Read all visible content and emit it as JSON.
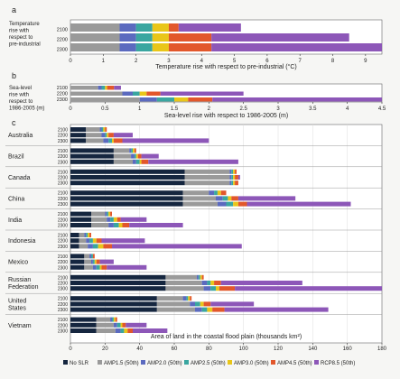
{
  "legend_labels": [
    "No SLR",
    "AMP1.5 (50th)",
    "AMP2.0 (50th)",
    "AMP2.5 (50th)",
    "AMP3.0 (50th)",
    "AMP4.5 (50th)",
    "RCP8.5 (50th)"
  ],
  "series_colors": [
    "#15263f",
    "#9a9a9a",
    "#5b6abf",
    "#3aa6a0",
    "#e9c619",
    "#e2572b",
    "#8d57b8"
  ],
  "chart_data": [
    {
      "panel": "a",
      "type": "bar",
      "orientation": "horizontal",
      "stacked": true,
      "row_label": "Temperature rise with respect to pre-industrial",
      "xlabel": "Temperature rise with respect to pre-industrial (°C)",
      "xlim": [
        0,
        9.5
      ],
      "xticks": [
        0,
        1,
        2,
        3,
        4,
        5,
        6,
        7,
        8,
        9
      ],
      "categories": [
        "2100",
        "2200",
        "2300"
      ],
      "series": [
        {
          "name": "AMP1.5 (50th)",
          "values": [
            1.5,
            1.5,
            1.5
          ]
        },
        {
          "name": "AMP2.0 (50th)",
          "values": [
            0.5,
            0.5,
            0.5
          ]
        },
        {
          "name": "AMP2.5 (50th)",
          "values": [
            0.5,
            0.5,
            0.5
          ]
        },
        {
          "name": "AMP3.0 (50th)",
          "values": [
            0.5,
            0.5,
            0.5
          ]
        },
        {
          "name": "AMP4.5 (50th)",
          "values": [
            0.3,
            1.3,
            1.3
          ]
        },
        {
          "name": "RCP8.5 (50th)",
          "values": [
            1.9,
            4.2,
            5.2
          ]
        }
      ]
    },
    {
      "panel": "b",
      "type": "bar",
      "orientation": "horizontal",
      "stacked": true,
      "row_label": "Sea-level rise with respect to 1986-2005 (m)",
      "xlabel": "Sea-level rise with respect to 1986-2005 (m)",
      "xlim": [
        0,
        4.5
      ],
      "xticks": [
        0,
        0.5,
        1,
        1.5,
        2,
        2.5,
        3,
        3.5,
        4,
        4.5
      ],
      "categories": [
        "2100",
        "2200",
        "2300"
      ],
      "series": [
        {
          "name": "AMP1.5 (50th)",
          "values": [
            0.4,
            0.75,
            1.0
          ]
        },
        {
          "name": "AMP2.0 (50th)",
          "values": [
            0.05,
            0.15,
            0.25
          ]
        },
        {
          "name": "AMP2.5 (50th)",
          "values": [
            0.05,
            0.1,
            0.25
          ]
        },
        {
          "name": "AMP3.0 (50th)",
          "values": [
            0.03,
            0.1,
            0.2
          ]
        },
        {
          "name": "AMP4.5 (50th)",
          "values": [
            0.1,
            0.2,
            0.35
          ]
        },
        {
          "name": "RCP8.5 (50th)",
          "values": [
            0.1,
            1.2,
            2.45
          ]
        }
      ]
    },
    {
      "panel": "c",
      "type": "bar",
      "orientation": "horizontal",
      "stacked": true,
      "xlabel": "Area of land in the coastal flood plain (thousands km²)",
      "xlim": [
        0,
        180
      ],
      "xticks": [
        0,
        20,
        40,
        60,
        80,
        100,
        120,
        140,
        160,
        180
      ],
      "years": [
        "2100",
        "2200",
        "2300"
      ],
      "countries": [
        {
          "name": "Australia",
          "rows": [
            [
              9,
              8,
              1,
              1,
              1,
              1,
              0
            ],
            [
              9,
              9,
              2,
              1,
              1,
              3,
              11
            ],
            [
              9,
              10,
              3,
              2,
              1,
              5,
              50
            ]
          ]
        },
        {
          "name": "Brazil",
          "rows": [
            [
              25,
              9,
              1,
              1,
              1,
              1,
              0
            ],
            [
              25,
              10,
              2,
              1,
              1,
              2,
              10
            ],
            [
              25,
              11,
              2,
              2,
              1,
              4,
              52
            ]
          ]
        },
        {
          "name": "Canada",
          "rows": [
            [
              66,
              26,
              1,
              1,
              1,
              1,
              0
            ],
            [
              66,
              26,
              1,
              1,
              1,
              2,
              1
            ],
            [
              66,
              26,
              1,
              1,
              1,
              2,
              0
            ]
          ]
        },
        {
          "name": "China",
          "rows": [
            [
              65,
              15,
              3,
              2,
              2,
              3,
              0
            ],
            [
              65,
              19,
              4,
              3,
              2,
              4,
              33
            ],
            [
              65,
              20,
              5,
              4,
              3,
              5,
              60
            ]
          ]
        },
        {
          "name": "India",
          "rows": [
            [
              12,
              8,
              1,
              1,
              1,
              1,
              0
            ],
            [
              12,
              9,
              2,
              2,
              2,
              2,
              15
            ],
            [
              12,
              10,
              3,
              3,
              2,
              4,
              31
            ]
          ]
        },
        {
          "name": "Indonesia",
          "rows": [
            [
              5,
              3,
              1,
              1,
              1,
              1,
              0
            ],
            [
              5,
              4,
              2,
              2,
              2,
              3,
              25
            ],
            [
              5,
              5,
              3,
              3,
              3,
              5,
              75
            ]
          ]
        },
        {
          "name": "Mexico",
          "rows": [
            [
              8,
              3,
              1,
              1,
              0,
              1,
              0
            ],
            [
              8,
              4,
              1,
              1,
              1,
              2,
              8
            ],
            [
              8,
              5,
              2,
              2,
              1,
              3,
              23
            ]
          ]
        },
        {
          "name": "Russian Federation",
          "rows": [
            [
              55,
              18,
              1,
              1,
              1,
              1,
              0
            ],
            [
              55,
              21,
              3,
              2,
              2,
              4,
              47
            ],
            [
              55,
              22,
              4,
              3,
              2,
              9,
              85
            ]
          ]
        },
        {
          "name": "United States",
          "rows": [
            [
              50,
              15,
              2,
              1,
              1,
              1,
              0
            ],
            [
              50,
              19,
              3,
              3,
              2,
              4,
              25
            ],
            [
              50,
              22,
              4,
              3,
              3,
              7,
              60
            ]
          ]
        },
        {
          "name": "Vietnam",
          "rows": [
            [
              15,
              8,
              1,
              1,
              1,
              1,
              0
            ],
            [
              15,
              10,
              2,
              2,
              1,
              2,
              12
            ],
            [
              15,
              11,
              3,
              2,
              2,
              3,
              20
            ]
          ]
        }
      ]
    }
  ]
}
